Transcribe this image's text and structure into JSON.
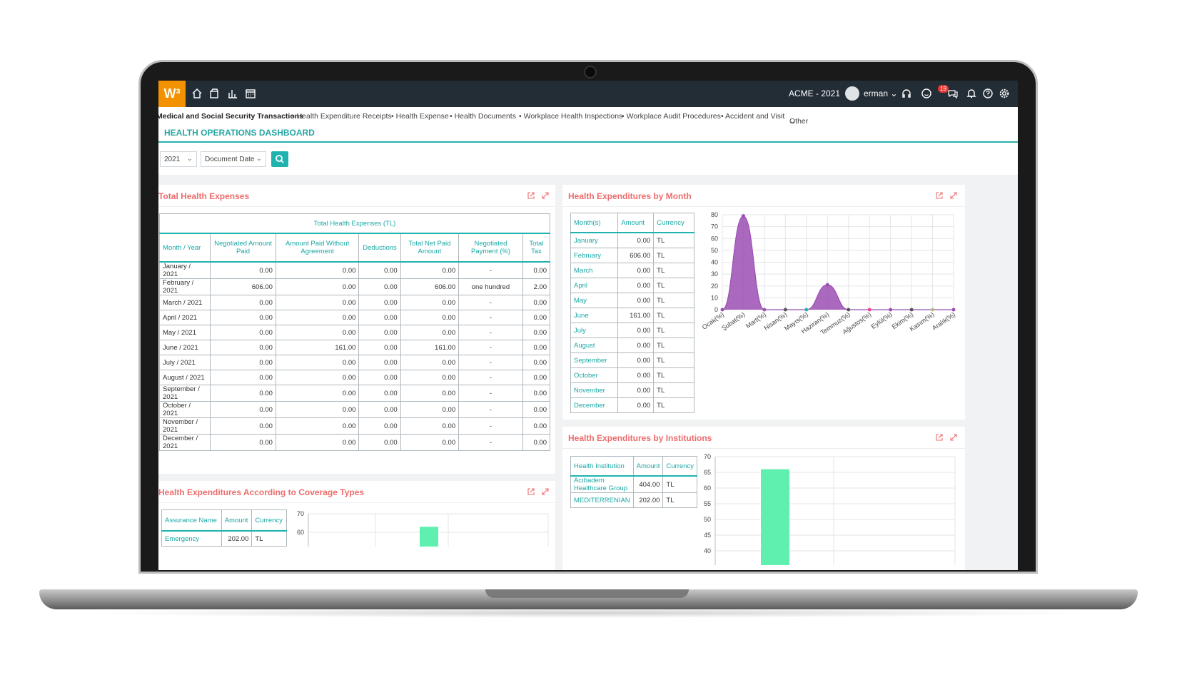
{
  "app": {
    "logo": "W³",
    "company": "ACME - 2021",
    "user": "erman",
    "notifications": "19"
  },
  "menu": {
    "items": [
      "Medical and Social Security Transactions",
      "• Health Expenditure Receipts",
      "• Health Expense",
      "• Health Documents",
      "• Workplace Health Inspections",
      "• Workplace Audit Procedures",
      "• Accident and Visit",
      "Other"
    ]
  },
  "page_title": "HEALTH OPERATIONS DASHBOARD",
  "filters": {
    "year": "2021",
    "date_type": "Document Date"
  },
  "total_card": {
    "title": "Total Health Expenses",
    "caption": "Total Health Expenses (TL)",
    "columns": [
      "Month / Year",
      "Negotiated Amount Paid",
      "Amount Paid Without Agreement",
      "Deductions",
      "Total Net Paid Amount",
      "Negotiated Payment (%)",
      "Total Tax"
    ],
    "rows": [
      [
        "January / 2021",
        "0.00",
        "0.00",
        "0.00",
        "0.00",
        "-",
        "0.00"
      ],
      [
        "February / 2021",
        "606.00",
        "0.00",
        "0.00",
        "606.00",
        "one hundred",
        "2.00"
      ],
      [
        "March / 2021",
        "0.00",
        "0.00",
        "0.00",
        "0.00",
        "-",
        "0.00"
      ],
      [
        "April / 2021",
        "0.00",
        "0.00",
        "0.00",
        "0.00",
        "-",
        "0.00"
      ],
      [
        "May / 2021",
        "0.00",
        "0.00",
        "0.00",
        "0.00",
        "-",
        "0.00"
      ],
      [
        "June / 2021",
        "0.00",
        "161.00",
        "0.00",
        "161.00",
        "-",
        "0.00"
      ],
      [
        "July / 2021",
        "0.00",
        "0.00",
        "0.00",
        "0.00",
        "-",
        "0.00"
      ],
      [
        "August / 2021",
        "0.00",
        "0.00",
        "0.00",
        "0.00",
        "-",
        "0.00"
      ],
      [
        "September / 2021",
        "0.00",
        "0.00",
        "0.00",
        "0.00",
        "-",
        "0.00"
      ],
      [
        "October / 2021",
        "0.00",
        "0.00",
        "0.00",
        "0.00",
        "-",
        "0.00"
      ],
      [
        "November / 2021",
        "0.00",
        "0.00",
        "0.00",
        "0.00",
        "-",
        "0.00"
      ],
      [
        "December / 2021",
        "0.00",
        "0.00",
        "0.00",
        "0.00",
        "-",
        "0.00"
      ]
    ]
  },
  "month_card": {
    "title": "Health Expenditures by Month",
    "columns": [
      "Month(s)",
      "Amount",
      "Currency"
    ],
    "rows": [
      [
        "January",
        "0.00",
        "TL"
      ],
      [
        "February",
        "606.00",
        "TL"
      ],
      [
        "March",
        "0.00",
        "TL"
      ],
      [
        "April",
        "0.00",
        "TL"
      ],
      [
        "May",
        "0.00",
        "TL"
      ],
      [
        "June",
        "161.00",
        "TL"
      ],
      [
        "July",
        "0.00",
        "TL"
      ],
      [
        "August",
        "0.00",
        "TL"
      ],
      [
        "September",
        "0.00",
        "TL"
      ],
      [
        "October",
        "0.00",
        "TL"
      ],
      [
        "November",
        "0.00",
        "TL"
      ],
      [
        "December",
        "0.00",
        "TL"
      ]
    ]
  },
  "coverage_card": {
    "title": "Health Expenditures According to Coverage Types",
    "columns": [
      "Assurance Name",
      "Amount",
      "Currency"
    ],
    "rows": [
      [
        "Emergency",
        "202.00",
        "TL"
      ]
    ]
  },
  "institution_card": {
    "title": "Health Expenditures by Institutions",
    "columns": [
      "Health Institution",
      "Amount",
      "Currency"
    ],
    "rows": [
      [
        "Acıbadem Healthcare Group",
        "404.00",
        "TL"
      ],
      [
        "MEDITERRENIAN",
        "202.00",
        "TL"
      ]
    ]
  },
  "chart_data": [
    {
      "type": "area",
      "categories": [
        "Ocak(%)",
        "Şubat(%)",
        "Mart(%)",
        "Nisan(%)",
        "Mayıs(%)",
        "Haziran(%)",
        "Temmuz(%)",
        "Ağustos(%)",
        "Eylül(%)",
        "Ekim(%)",
        "Kasım(%)",
        "Aralık(%)"
      ],
      "values": [
        0,
        79,
        0,
        0,
        0,
        21,
        0,
        0,
        0,
        0,
        0,
        0
      ],
      "ylim": [
        0,
        80
      ],
      "yticks": [
        0,
        10,
        20,
        30,
        40,
        50,
        60,
        70,
        80
      ],
      "grid": true,
      "color": "#9b4fb3",
      "point_colors": [
        "#9b4fb3",
        "#9b4fb3",
        "#9b4fb3",
        "#555555",
        "#26b5a8",
        "#9b4fb3",
        "#555555",
        "#e84a8a",
        "#9b4fb3",
        "#555555",
        "#a8c868",
        "#9b4fb3"
      ]
    },
    {
      "type": "bar",
      "values": [
        66
      ],
      "ylim": [
        40,
        70
      ],
      "yticks": [
        40,
        45,
        50,
        55,
        60,
        65,
        70
      ],
      "grid": true,
      "color": "#5ff0b0"
    },
    {
      "type": "bar",
      "values": [
        63
      ],
      "ylim": [
        60,
        70
      ],
      "yticks": [
        60,
        70
      ],
      "grid": true,
      "color": "#5ff0b0"
    }
  ]
}
